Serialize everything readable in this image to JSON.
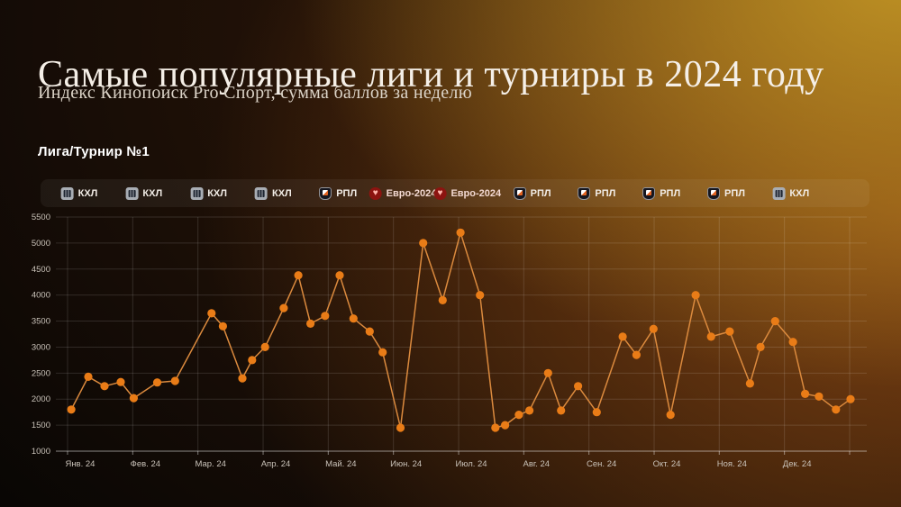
{
  "page": {
    "title": "Самые популярные лиги  и турниры в 2024 году",
    "subtitle": "Индекс Кинопоиск Pro Спорт, сумма баллов за неделю",
    "section_label": "Лига/Турнир №1"
  },
  "colors": {
    "line": "#DB8A3E",
    "marker": "#E97C17",
    "grid": "rgba(255,255,255,0.13)",
    "axis": "rgba(255,255,255,0.45)",
    "tick_text": "#c9c2b9"
  },
  "badges": [
    {
      "label": "КХЛ",
      "icon": "khl"
    },
    {
      "label": "КХЛ",
      "icon": "khl"
    },
    {
      "label": "КХЛ",
      "icon": "khl"
    },
    {
      "label": "КХЛ",
      "icon": "khl"
    },
    {
      "label": "РПЛ",
      "icon": "rpl"
    },
    {
      "label": "Евро-2024",
      "icon": "euro"
    },
    {
      "label": "Евро-2024",
      "icon": "euro"
    },
    {
      "label": "РПЛ",
      "icon": "rpl"
    },
    {
      "label": "РПЛ",
      "icon": "rpl"
    },
    {
      "label": "РПЛ",
      "icon": "rpl"
    },
    {
      "label": "РПЛ",
      "icon": "rpl"
    },
    {
      "label": "КХЛ",
      "icon": "khl"
    }
  ],
  "chart_data": {
    "type": "line",
    "title": "Лига/Турнир №1 — Индекс Кинопоиск Pro Спорт, сумма баллов за неделю",
    "xlabel": "",
    "ylabel": "",
    "ylim": [
      1000,
      5500
    ],
    "y_ticks": [
      1000,
      1500,
      2000,
      2500,
      3000,
      3500,
      4000,
      4500,
      5000,
      5500
    ],
    "x_tick_labels": [
      "Янв. 24",
      "Фев. 24",
      "Мар. 24",
      "Апр. 24",
      "Май. 24",
      "Июн. 24",
      "Июл. 24",
      "Авг. 24",
      "Сен. 24",
      "Окт. 24",
      "Ноя. 24",
      "Дек. 24"
    ],
    "grid": true,
    "legend": "none",
    "month_grid_x": [
      0.0144,
      0.0948,
      0.1752,
      0.2556,
      0.3359,
      0.4163,
      0.4967,
      0.577,
      0.6574,
      0.7378,
      0.8181,
      0.8985,
      0.9789
    ],
    "points": [
      {
        "x": 0.019,
        "value": 1800
      },
      {
        "x": 0.04,
        "value": 2430
      },
      {
        "x": 0.06,
        "value": 2250
      },
      {
        "x": 0.08,
        "value": 2330
      },
      {
        "x": 0.096,
        "value": 2020
      },
      {
        "x": 0.125,
        "value": 2320
      },
      {
        "x": 0.147,
        "value": 2350
      },
      {
        "x": 0.192,
        "value": 3650
      },
      {
        "x": 0.206,
        "value": 3400
      },
      {
        "x": 0.23,
        "value": 2400
      },
      {
        "x": 0.242,
        "value": 2750
      },
      {
        "x": 0.258,
        "value": 3000
      },
      {
        "x": 0.281,
        "value": 3750
      },
      {
        "x": 0.299,
        "value": 4380
      },
      {
        "x": 0.314,
        "value": 3450
      },
      {
        "x": 0.332,
        "value": 3600
      },
      {
        "x": 0.35,
        "value": 4380
      },
      {
        "x": 0.367,
        "value": 3550
      },
      {
        "x": 0.387,
        "value": 3300
      },
      {
        "x": 0.403,
        "value": 2900
      },
      {
        "x": 0.425,
        "value": 1450
      },
      {
        "x": 0.453,
        "value": 5000
      },
      {
        "x": 0.477,
        "value": 3900
      },
      {
        "x": 0.499,
        "value": 5200
      },
      {
        "x": 0.523,
        "value": 4000
      },
      {
        "x": 0.542,
        "value": 1450
      },
      {
        "x": 0.554,
        "value": 1500
      },
      {
        "x": 0.571,
        "value": 1700
      },
      {
        "x": 0.584,
        "value": 1780
      },
      {
        "x": 0.607,
        "value": 2500
      },
      {
        "x": 0.623,
        "value": 1780
      },
      {
        "x": 0.644,
        "value": 2250
      },
      {
        "x": 0.667,
        "value": 1750
      },
      {
        "x": 0.699,
        "value": 3200
      },
      {
        "x": 0.716,
        "value": 2850
      },
      {
        "x": 0.737,
        "value": 3350
      },
      {
        "x": 0.758,
        "value": 1700
      },
      {
        "x": 0.789,
        "value": 4000
      },
      {
        "x": 0.808,
        "value": 3200
      },
      {
        "x": 0.831,
        "value": 3300
      },
      {
        "x": 0.856,
        "value": 2300
      },
      {
        "x": 0.869,
        "value": 3000
      },
      {
        "x": 0.887,
        "value": 3500
      },
      {
        "x": 0.909,
        "value": 3100
      },
      {
        "x": 0.924,
        "value": 2100
      },
      {
        "x": 0.941,
        "value": 2050
      },
      {
        "x": 0.962,
        "value": 1800
      },
      {
        "x": 0.98,
        "value": 2000
      }
    ]
  }
}
